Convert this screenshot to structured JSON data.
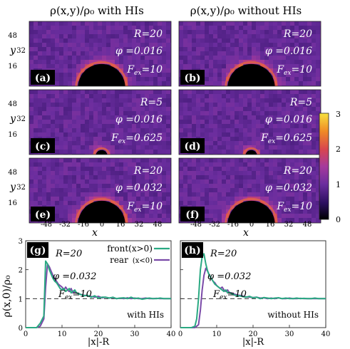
{
  "titles": {
    "left": "ρ(x,y)/ρ₀  with HIs",
    "right": "ρ(x,y)/ρ₀  without HIs"
  },
  "colorbar": {
    "ticks": [
      "0",
      "1",
      "2",
      "3"
    ],
    "range": [
      0,
      3
    ],
    "colors": [
      "#000000",
      "#2a0e5e",
      "#6a2d9e",
      "#a63a9c",
      "#d8454f",
      "#f08a26",
      "#f7e13e"
    ]
  },
  "heatmaps": [
    {
      "tag": "(a)",
      "R": "R=20",
      "phi": "φ =0.016",
      "F": "F",
      "Fval": "=10",
      "radius": 20
    },
    {
      "tag": "(b)",
      "R": "R=20",
      "phi": "φ =0.016",
      "F": "F",
      "Fval": "=10",
      "radius": 20
    },
    {
      "tag": "(c)",
      "R": "R=5",
      "phi": "φ =0.016",
      "F": "F",
      "Fval": "=0.625",
      "radius": 5
    },
    {
      "tag": "(d)",
      "R": "R=5",
      "phi": "φ =0.016",
      "F": "F",
      "Fval": "=0.625",
      "radius": 5
    },
    {
      "tag": "(e)",
      "R": "R=20",
      "phi": "φ =0.032",
      "F": "F",
      "Fval": "=10",
      "radius": 20
    },
    {
      "tag": "(f)",
      "R": "R=20",
      "phi": "φ =0.032",
      "F": "F",
      "Fval": "=10",
      "radius": 20
    }
  ],
  "heatmap_axes": {
    "xlabel": "x",
    "ylabel": "y",
    "xticks": [
      "-48",
      "-32",
      "-16",
      "0",
      "16",
      "32",
      "48"
    ],
    "yticks": [
      "48",
      "32",
      "16"
    ]
  },
  "chart_data": [
    {
      "type": "line",
      "panel": "(g)",
      "ylabel": "ρ(x,0)/ρ₀",
      "xlabel": "|x|-R",
      "xlim": [
        0,
        40
      ],
      "ylim": [
        0,
        3
      ],
      "xticks": [
        "0",
        "10",
        "20",
        "30",
        "40"
      ],
      "yticks": [
        "0",
        "1",
        "2",
        "3"
      ],
      "legend": {
        "position": "top-right"
      },
      "annotations": {
        "R": "R=20",
        "phi": "φ =0.032",
        "F": "F",
        "Fval": "=10",
        "note": "with HIs"
      },
      "reference_line": 1.0,
      "series": [
        {
          "name": "front",
          "cond": "(x>0)",
          "color": "#2aa982",
          "x": [
            0,
            3,
            4,
            5,
            5.5,
            6,
            6.5,
            7,
            7.5,
            8,
            8.5,
            9,
            9.5,
            10,
            10.5,
            11,
            11.5,
            12,
            12.5,
            13,
            13.5,
            14,
            15,
            16,
            17,
            18,
            19,
            20,
            21,
            22,
            23,
            24,
            25,
            26,
            27,
            28,
            29,
            30,
            31,
            32,
            33,
            34,
            35,
            36,
            37,
            38,
            39,
            40
          ],
          "y": [
            0,
            0,
            0.15,
            0.4,
            2.3,
            2.2,
            2.0,
            1.85,
            1.7,
            1.6,
            1.55,
            1.45,
            1.35,
            1.3,
            1.35,
            1.25,
            1.3,
            1.35,
            1.2,
            1.25,
            1.3,
            1.2,
            1.15,
            1.1,
            1.12,
            1.05,
            1.1,
            1.02,
            1.05,
            1.05,
            1.02,
            1.05,
            1.0,
            1.02,
            1.03,
            1.0,
            1.05,
            1.0,
            1.02,
            0.98,
            1.0,
            1.02,
            1.0,
            1.0,
            1.02,
            1.0,
            1.0,
            1.0
          ]
        },
        {
          "name": "rear",
          "cond": "(x<0)",
          "color": "#7a4aa8",
          "x": [
            0,
            3,
            4,
            5,
            5.5,
            6,
            6.5,
            7,
            7.5,
            8,
            8.5,
            9,
            9.5,
            10,
            10.5,
            11,
            11.5,
            12,
            12.5,
            13,
            13.5,
            14,
            15,
            16,
            17,
            18,
            19,
            20,
            21,
            22,
            23,
            24,
            25,
            26,
            27,
            28,
            29,
            30,
            31,
            32,
            33,
            34,
            35,
            36,
            37,
            38,
            39,
            40
          ],
          "y": [
            0,
            0,
            0.05,
            0.3,
            1.4,
            2.2,
            2.1,
            1.95,
            1.8,
            1.7,
            1.6,
            1.5,
            1.45,
            1.4,
            1.3,
            1.4,
            1.3,
            1.25,
            1.35,
            1.2,
            1.25,
            1.2,
            1.15,
            1.12,
            1.1,
            1.08,
            1.05,
            1.08,
            1.03,
            1.05,
            1.02,
            1.04,
            1.0,
            1.02,
            1.0,
            1.03,
            1.0,
            1.02,
            1.0,
            1.0,
            1.02,
            1.0,
            1.0,
            1.01,
            1.0,
            1.0,
            1.0,
            1.0
          ]
        }
      ]
    },
    {
      "type": "line",
      "panel": "(h)",
      "xlabel": "|x|-R",
      "xlim": [
        0,
        40
      ],
      "ylim": [
        0,
        3
      ],
      "xticks": [
        "0",
        "10",
        "20",
        "30",
        "40"
      ],
      "annotations": {
        "R": "R=20",
        "phi": "φ =0.032",
        "F": "F",
        "Fval": "=10",
        "note": "without HIs"
      },
      "reference_line": 1.0,
      "series": [
        {
          "name": "front",
          "color": "#2aa982",
          "x": [
            0,
            3,
            4,
            4.5,
            5,
            5.5,
            6,
            6.5,
            7,
            7.5,
            8,
            8.5,
            9,
            9.5,
            10,
            10.5,
            11,
            11.5,
            12,
            12.5,
            13,
            13.5,
            14,
            15,
            16,
            17,
            18,
            19,
            20,
            21,
            22,
            23,
            24,
            25,
            26,
            27,
            28,
            29,
            30,
            31,
            32,
            33,
            34,
            35,
            36,
            37,
            38,
            39,
            40
          ],
          "y": [
            0,
            0,
            0.05,
            0.3,
            1.0,
            2.0,
            2.45,
            2.55,
            2.2,
            1.95,
            1.8,
            1.7,
            1.6,
            1.5,
            1.45,
            1.4,
            1.35,
            1.3,
            1.25,
            1.3,
            1.2,
            1.22,
            1.18,
            1.12,
            1.1,
            1.08,
            1.05,
            1.08,
            1.03,
            1.05,
            1.0,
            1.04,
            1.02,
            1.0,
            1.02,
            1.03,
            1.0,
            1.02,
            1.0,
            1.0,
            1.02,
            1.0,
            1.01,
            1.0,
            1.0,
            1.02,
            1.0,
            1.0,
            1.0
          ]
        },
        {
          "name": "rear",
          "color": "#7a4aa8",
          "x": [
            0,
            3,
            4,
            5,
            5.5,
            6,
            6.5,
            7,
            7.5,
            8,
            8.5,
            9,
            9.5,
            10,
            10.5,
            11,
            11.5,
            12,
            12.5,
            13,
            13.5,
            14,
            15,
            16,
            17,
            18,
            19,
            20,
            21,
            22,
            23,
            24,
            25,
            26,
            27,
            28,
            29,
            30,
            31,
            32,
            33,
            34,
            35,
            36,
            37,
            38,
            39,
            40
          ],
          "y": [
            0,
            0,
            0,
            0.1,
            0.6,
            1.3,
            1.8,
            2.05,
            1.95,
            1.8,
            1.7,
            1.6,
            1.55,
            1.45,
            1.4,
            1.35,
            1.4,
            1.3,
            1.25,
            1.3,
            1.2,
            1.2,
            1.15,
            1.12,
            1.1,
            1.06,
            1.05,
            1.04,
            1.05,
            1.02,
            1.03,
            1.0,
            1.02,
            1.0,
            1.03,
            1.0,
            1.0,
            1.02,
            1.0,
            1.0,
            1.01,
            1.0,
            1.0,
            1.0,
            1.0,
            1.0,
            1.0,
            1.0
          ]
        }
      ]
    }
  ]
}
